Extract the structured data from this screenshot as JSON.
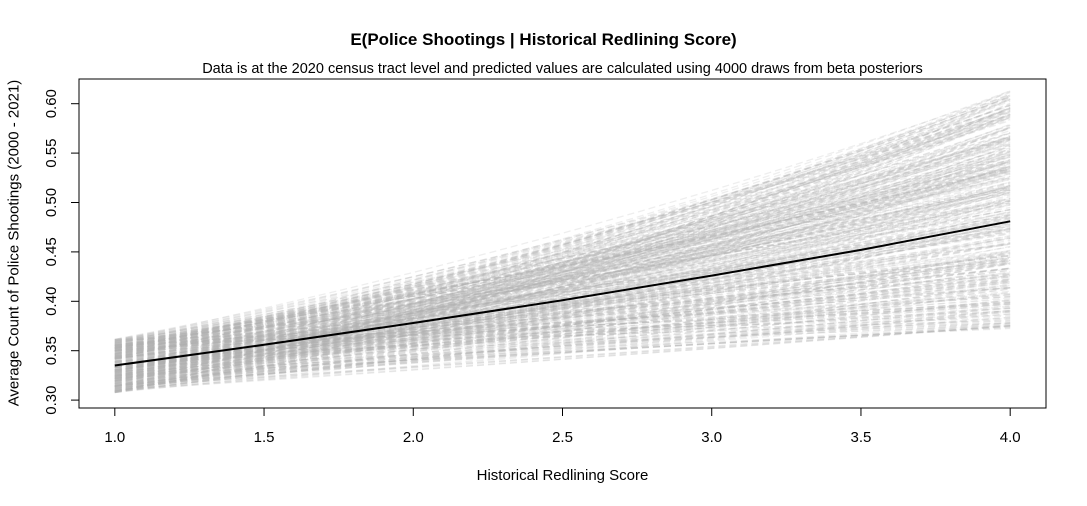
{
  "chart_data": {
    "type": "line",
    "title": "E(Police Shootings | Historical Redlining Score)",
    "subtitle": "Data is at the 2020 census tract level and predicted values are calculated using 4000 draws from beta posteriors",
    "xlabel": "Historical Redlining Score",
    "ylabel": "Average Count of Police Shootings (2000 - 2021)",
    "xlim": [
      0.88,
      4.12
    ],
    "ylim": [
      0.292,
      0.625
    ],
    "x_ticks": [
      "1.0",
      "1.5",
      "2.0",
      "2.5",
      "3.0",
      "3.5",
      "4.0"
    ],
    "y_ticks": [
      "0.30",
      "0.35",
      "0.40",
      "0.45",
      "0.50",
      "0.55",
      "0.60"
    ],
    "grid": false,
    "legend": "none",
    "series": [
      {
        "x": [
          1.0,
          1.5,
          2.0,
          2.5,
          3.0,
          3.5,
          4.0
        ],
        "values": [
          0.335,
          0.356,
          0.378,
          0.401,
          0.426,
          0.452,
          0.481
        ],
        "color": "#000000"
      }
    ],
    "posterior_draws": {
      "count": 4000,
      "color": "#b0b0b0",
      "x": [
        1.0,
        4.0
      ],
      "at_x_1": [
        0.306,
        0.363
      ],
      "at_x_4": [
        0.372,
        0.614
      ]
    }
  }
}
